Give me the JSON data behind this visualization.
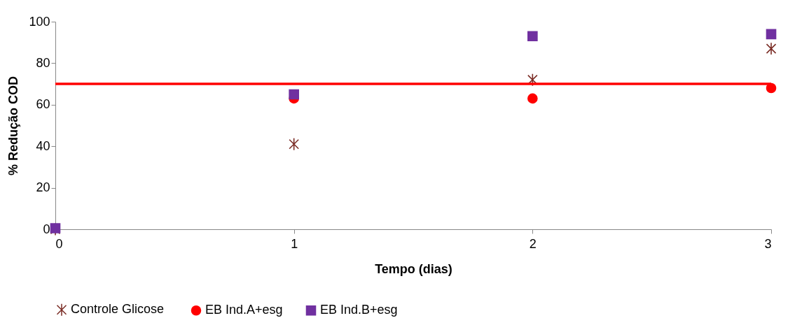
{
  "chart_data": {
    "type": "scatter",
    "xlabel": "Tempo (dias)",
    "ylabel": "% Redução COD",
    "x": [
      0,
      1,
      2,
      3
    ],
    "xlim": [
      0,
      3
    ],
    "xticks": [
      0,
      1,
      2,
      3
    ],
    "ylim": [
      0,
      100
    ],
    "yticks": [
      0,
      20,
      40,
      60,
      80,
      100
    ],
    "grid": false,
    "legend": "bottom",
    "series": [
      {
        "name": "Controle  Glicose",
        "color": "#7b2d26",
        "marker": "cross",
        "values": [
          0,
          41,
          72,
          87
        ]
      },
      {
        "name": "EB Ind.A+esg",
        "color": "#ff0000",
        "marker": "circle",
        "values": [
          null,
          63,
          63,
          68
        ]
      },
      {
        "name": "EB Ind.B+esg",
        "color": "#7030a0",
        "marker": "square",
        "values": [
          0.5,
          65,
          93,
          94
        ]
      }
    ],
    "ref_lines": [
      {
        "axis": "y",
        "value": 70,
        "color": "#ff0000"
      }
    ]
  }
}
